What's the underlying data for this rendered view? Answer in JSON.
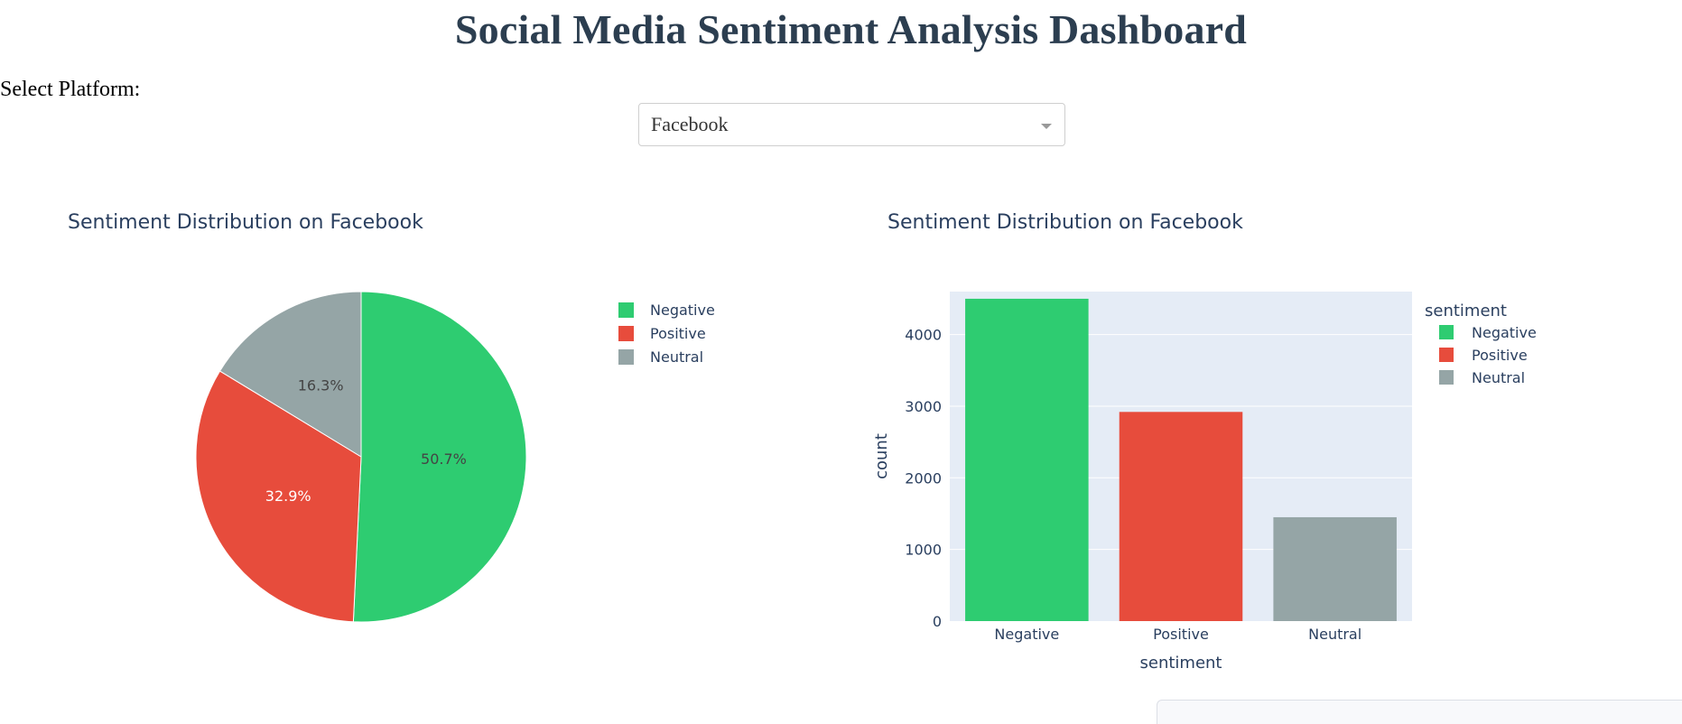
{
  "header": {
    "title": "Social Media Sentiment Analysis Dashboard"
  },
  "controls": {
    "platform_label": "Select Platform:",
    "platform_selected": "Facebook"
  },
  "colors": {
    "Negative": "#2ecc71",
    "Positive": "#e74c3c",
    "Neutral": "#95a5a6",
    "title_text": "#2c3e50",
    "plot_bg": "#e5ecf6"
  },
  "chart_data": [
    {
      "type": "pie",
      "title": "Sentiment Distribution on Facebook",
      "labels": [
        "Negative",
        "Positive",
        "Neutral"
      ],
      "percentages": [
        50.7,
        32.9,
        16.3
      ],
      "slice_labels": [
        "50.7%",
        "32.9%",
        "16.3%"
      ],
      "legend": [
        "Negative",
        "Positive",
        "Neutral"
      ],
      "legend_placement": "right"
    },
    {
      "type": "bar",
      "title": "Sentiment Distribution on Facebook",
      "categories": [
        "Negative",
        "Positive",
        "Neutral"
      ],
      "values": [
        4500,
        2920,
        1450
      ],
      "xlabel": "sentiment",
      "ylabel": "count",
      "ylim": [
        0,
        4600
      ],
      "yticks": [
        0,
        1000,
        2000,
        3000,
        4000
      ],
      "ytick_labels": [
        "0",
        "1000",
        "2000",
        "3000",
        "4000"
      ],
      "legend_title": "sentiment",
      "legend": [
        "Negative",
        "Positive",
        "Neutral"
      ],
      "legend_placement": "right",
      "grid": true
    }
  ]
}
